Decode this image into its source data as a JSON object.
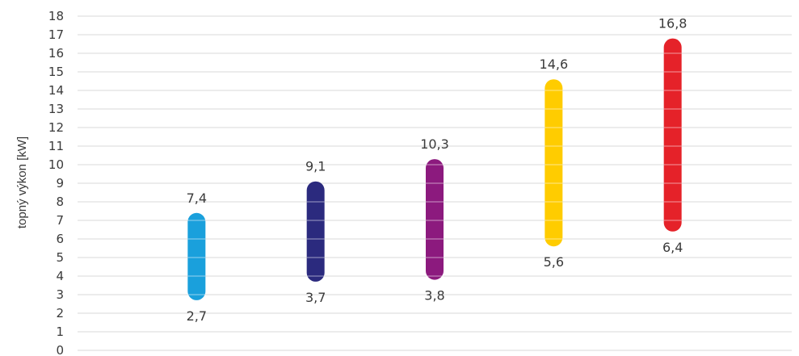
{
  "chart_data": {
    "type": "range-bar",
    "ylabel": "topný výkon [kW]",
    "ylim": [
      0,
      18
    ],
    "ytick_step": 1,
    "y_ticks": [
      "0",
      "1",
      "2",
      "3",
      "4",
      "5",
      "6",
      "7",
      "8",
      "9",
      "10",
      "11",
      "12",
      "13",
      "14",
      "15",
      "16",
      "17",
      "18"
    ],
    "grid": true,
    "ranges": [
      {
        "low": 2.7,
        "high": 7.4,
        "low_label": "2,7",
        "high_label": "7,4",
        "color": "#1aa0dc"
      },
      {
        "low": 3.7,
        "high": 9.1,
        "low_label": "3,7",
        "high_label": "9,1",
        "color": "#2b2a7e"
      },
      {
        "low": 3.8,
        "high": 10.3,
        "low_label": "3,8",
        "high_label": "10,3",
        "color": "#8c1a7e"
      },
      {
        "low": 5.6,
        "high": 14.6,
        "low_label": "5,6",
        "high_label": "14,6",
        "color": "#ffcc00"
      },
      {
        "low": 6.4,
        "high": 16.8,
        "low_label": "6,4",
        "high_label": "16,8",
        "color": "#e52229"
      }
    ]
  }
}
